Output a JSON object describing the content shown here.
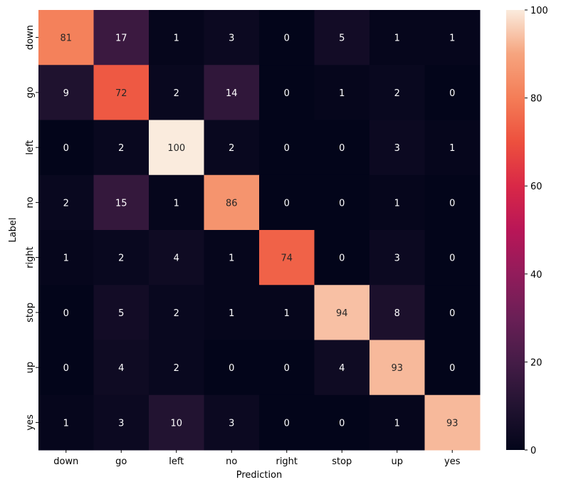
{
  "chart_data": {
    "type": "heatmap",
    "xlabel": "Prediction",
    "ylabel": "Label",
    "x_categories": [
      "down",
      "go",
      "left",
      "no",
      "right",
      "stop",
      "up",
      "yes"
    ],
    "y_categories": [
      "down",
      "go",
      "left",
      "no",
      "right",
      "stop",
      "up",
      "yes"
    ],
    "values": [
      [
        81,
        17,
        1,
        3,
        0,
        5,
        1,
        1
      ],
      [
        9,
        72,
        2,
        14,
        0,
        1,
        2,
        0
      ],
      [
        0,
        2,
        100,
        2,
        0,
        0,
        3,
        1
      ],
      [
        2,
        15,
        1,
        86,
        0,
        0,
        1,
        0
      ],
      [
        1,
        2,
        4,
        1,
        74,
        0,
        3,
        0
      ],
      [
        0,
        5,
        2,
        1,
        1,
        94,
        8,
        0
      ],
      [
        0,
        4,
        2,
        0,
        0,
        4,
        93,
        0
      ],
      [
        1,
        3,
        10,
        3,
        0,
        0,
        1,
        93
      ]
    ],
    "colorbar": {
      "min": 0,
      "max": 100,
      "ticks": [
        0,
        20,
        40,
        60,
        80,
        100
      ]
    },
    "colormap": "rocket",
    "colormap_stops": [
      "#03051a",
      "#221331",
      "#451c47",
      "#6a1f56",
      "#921c5b",
      "#b91657",
      "#d92847",
      "#ed503e",
      "#f47d57",
      "#f6a47e",
      "#faebdd"
    ]
  }
}
